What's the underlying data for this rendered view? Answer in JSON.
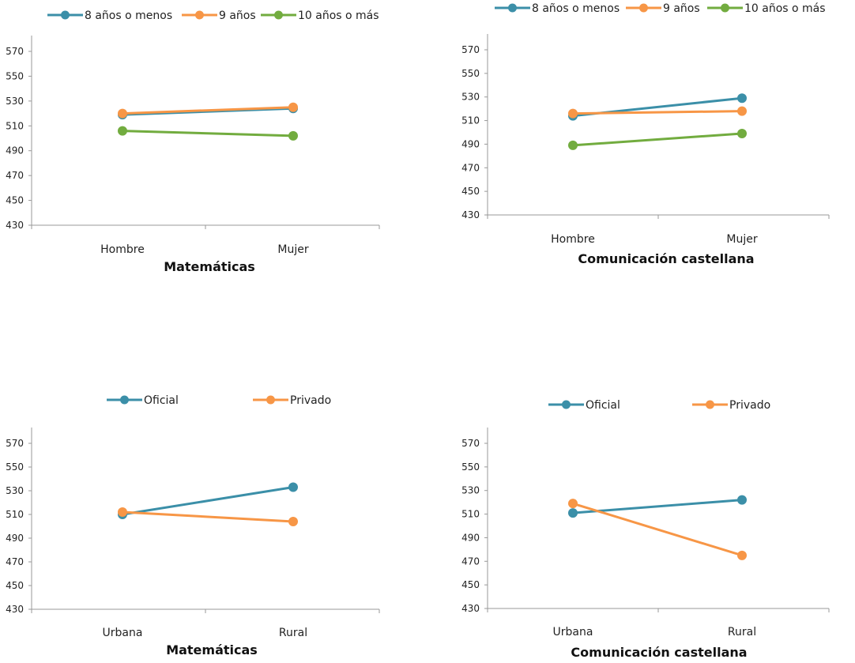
{
  "chart_data": [
    {
      "type": "line",
      "title": "Matemáticas",
      "categories": [
        "Hombre",
        "Mujer"
      ],
      "ylim": [
        430,
        570
      ],
      "yticks": [
        430,
        450,
        470,
        490,
        510,
        530,
        550,
        570
      ],
      "grid": false,
      "legend": "top",
      "series": [
        {
          "name": "8 años o menos",
          "color": "#3b8fa8",
          "values": [
            519,
            524
          ]
        },
        {
          "name": "9 años",
          "color": "#f79646",
          "values": [
            520,
            525
          ]
        },
        {
          "name": "10 años o más",
          "color": "#72ac3f",
          "values": [
            506,
            502
          ]
        }
      ]
    },
    {
      "type": "line",
      "title": "Comunicación castellana",
      "categories": [
        "Hombre",
        "Mujer"
      ],
      "ylim": [
        430,
        570
      ],
      "yticks": [
        430,
        450,
        470,
        490,
        510,
        530,
        550,
        570
      ],
      "grid": false,
      "legend": "top",
      "series": [
        {
          "name": "8 años o menos",
          "color": "#3b8fa8",
          "values": [
            514,
            529
          ]
        },
        {
          "name": "9 años",
          "color": "#f79646",
          "values": [
            516,
            518
          ]
        },
        {
          "name": "10 años o más",
          "color": "#72ac3f",
          "values": [
            489,
            499
          ]
        }
      ]
    },
    {
      "type": "line",
      "title": "Matemáticas",
      "categories": [
        "Urbana",
        "Rural"
      ],
      "ylim": [
        430,
        570
      ],
      "yticks": [
        430,
        450,
        470,
        490,
        510,
        530,
        550,
        570
      ],
      "grid": false,
      "legend": "top",
      "series": [
        {
          "name": "Oficial",
          "color": "#3b8fa8",
          "values": [
            510,
            533
          ]
        },
        {
          "name": "Privado",
          "color": "#f79646",
          "values": [
            512,
            504
          ]
        }
      ]
    },
    {
      "type": "line",
      "title": "Comunicación castellana",
      "categories": [
        "Urbana",
        "Rural"
      ],
      "ylim": [
        430,
        570
      ],
      "yticks": [
        430,
        450,
        470,
        490,
        510,
        530,
        550,
        570
      ],
      "grid": false,
      "legend": "top",
      "series": [
        {
          "name": "Oficial",
          "color": "#3b8fa8",
          "values": [
            511,
            522
          ]
        },
        {
          "name": "Privado",
          "color": "#f79646",
          "values": [
            519,
            475
          ]
        }
      ]
    }
  ]
}
